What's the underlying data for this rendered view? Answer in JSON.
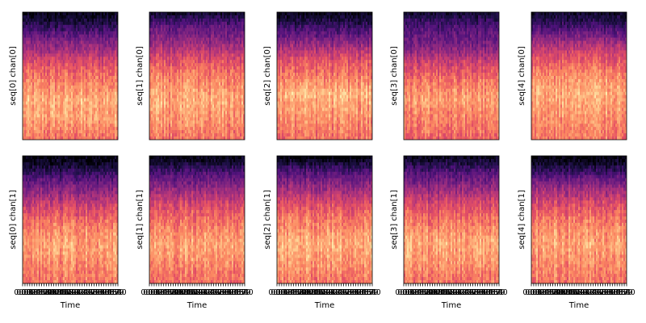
{
  "chart_data": {
    "type": "heatmap",
    "title": "",
    "colormap": "magma",
    "rows": 2,
    "cols": 5,
    "x_axis": {
      "label": "Time",
      "tick_labels": [
        "0:00",
        "0:01",
        "0:02",
        "0:03",
        "0:04",
        "0:05",
        "0:06",
        "0:07",
        "0:08",
        "0:09",
        "0:10",
        "0:11",
        "0:12",
        "0:13",
        "0:14",
        "0:15",
        "0:16",
        "0:17",
        "0:18",
        "0:19",
        "0:20",
        "0:21",
        "0:22",
        "0:23",
        "0:24",
        "0:25",
        "0:26",
        "0:27",
        "0:28",
        "0:29",
        "0:30",
        "0:31",
        "0:32",
        "0:33",
        "0:34",
        "0:35",
        "0:36",
        "0:37",
        "0:38",
        "0:39",
        "0:40"
      ]
    },
    "panels": [
      {
        "ylabel": "seq[0] chan[0]",
        "profile": [
          0.05,
          0.1,
          0.2,
          0.3,
          0.38,
          0.46,
          0.55,
          0.62,
          0.68,
          0.72,
          0.76,
          0.8,
          0.84,
          0.8,
          0.82,
          0.78,
          0.74,
          0.7
        ]
      },
      {
        "ylabel": "seq[1] chan[0]",
        "profile": [
          0.08,
          0.2,
          0.3,
          0.35,
          0.42,
          0.5,
          0.58,
          0.64,
          0.7,
          0.74,
          0.78,
          0.8,
          0.82,
          0.8,
          0.78,
          0.76,
          0.72,
          0.7
        ]
      },
      {
        "ylabel": "seq[2] chan[0]",
        "profile": [
          0.05,
          0.12,
          0.22,
          0.3,
          0.4,
          0.5,
          0.58,
          0.65,
          0.7,
          0.74,
          0.8,
          0.85,
          0.82,
          0.8,
          0.78,
          0.74,
          0.72,
          0.7
        ]
      },
      {
        "ylabel": "seq[3] chan[0]",
        "profile": [
          0.1,
          0.18,
          0.25,
          0.3,
          0.34,
          0.4,
          0.5,
          0.58,
          0.64,
          0.7,
          0.74,
          0.78,
          0.8,
          0.76,
          0.74,
          0.72,
          0.7,
          0.66
        ]
      },
      {
        "ylabel": "seq[4] chan[0]",
        "profile": [
          0.08,
          0.15,
          0.25,
          0.35,
          0.45,
          0.55,
          0.62,
          0.68,
          0.74,
          0.78,
          0.82,
          0.84,
          0.82,
          0.8,
          0.78,
          0.76,
          0.74,
          0.72
        ]
      },
      {
        "ylabel": "seq[0] chan[1]",
        "profile": [
          0.02,
          0.08,
          0.18,
          0.28,
          0.36,
          0.44,
          0.52,
          0.6,
          0.66,
          0.72,
          0.76,
          0.8,
          0.82,
          0.8,
          0.78,
          0.76,
          0.74,
          0.72
        ]
      },
      {
        "ylabel": "seq[1] chan[1]",
        "profile": [
          0.04,
          0.12,
          0.24,
          0.32,
          0.4,
          0.48,
          0.56,
          0.62,
          0.68,
          0.72,
          0.76,
          0.8,
          0.82,
          0.8,
          0.78,
          0.74,
          0.72,
          0.7
        ]
      },
      {
        "ylabel": "seq[2] chan[1]",
        "profile": [
          0.02,
          0.14,
          0.26,
          0.34,
          0.42,
          0.5,
          0.58,
          0.64,
          0.7,
          0.74,
          0.78,
          0.82,
          0.84,
          0.82,
          0.8,
          0.78,
          0.74,
          0.72
        ]
      },
      {
        "ylabel": "seq[3] chan[1]",
        "profile": [
          0.05,
          0.15,
          0.25,
          0.32,
          0.4,
          0.48,
          0.56,
          0.62,
          0.68,
          0.72,
          0.76,
          0.8,
          0.82,
          0.8,
          0.78,
          0.76,
          0.72,
          0.7
        ]
      },
      {
        "ylabel": "seq[4] chan[1]",
        "profile": [
          0.02,
          0.1,
          0.2,
          0.32,
          0.42,
          0.5,
          0.58,
          0.64,
          0.7,
          0.74,
          0.78,
          0.8,
          0.82,
          0.8,
          0.78,
          0.76,
          0.74,
          0.72
        ]
      }
    ]
  }
}
